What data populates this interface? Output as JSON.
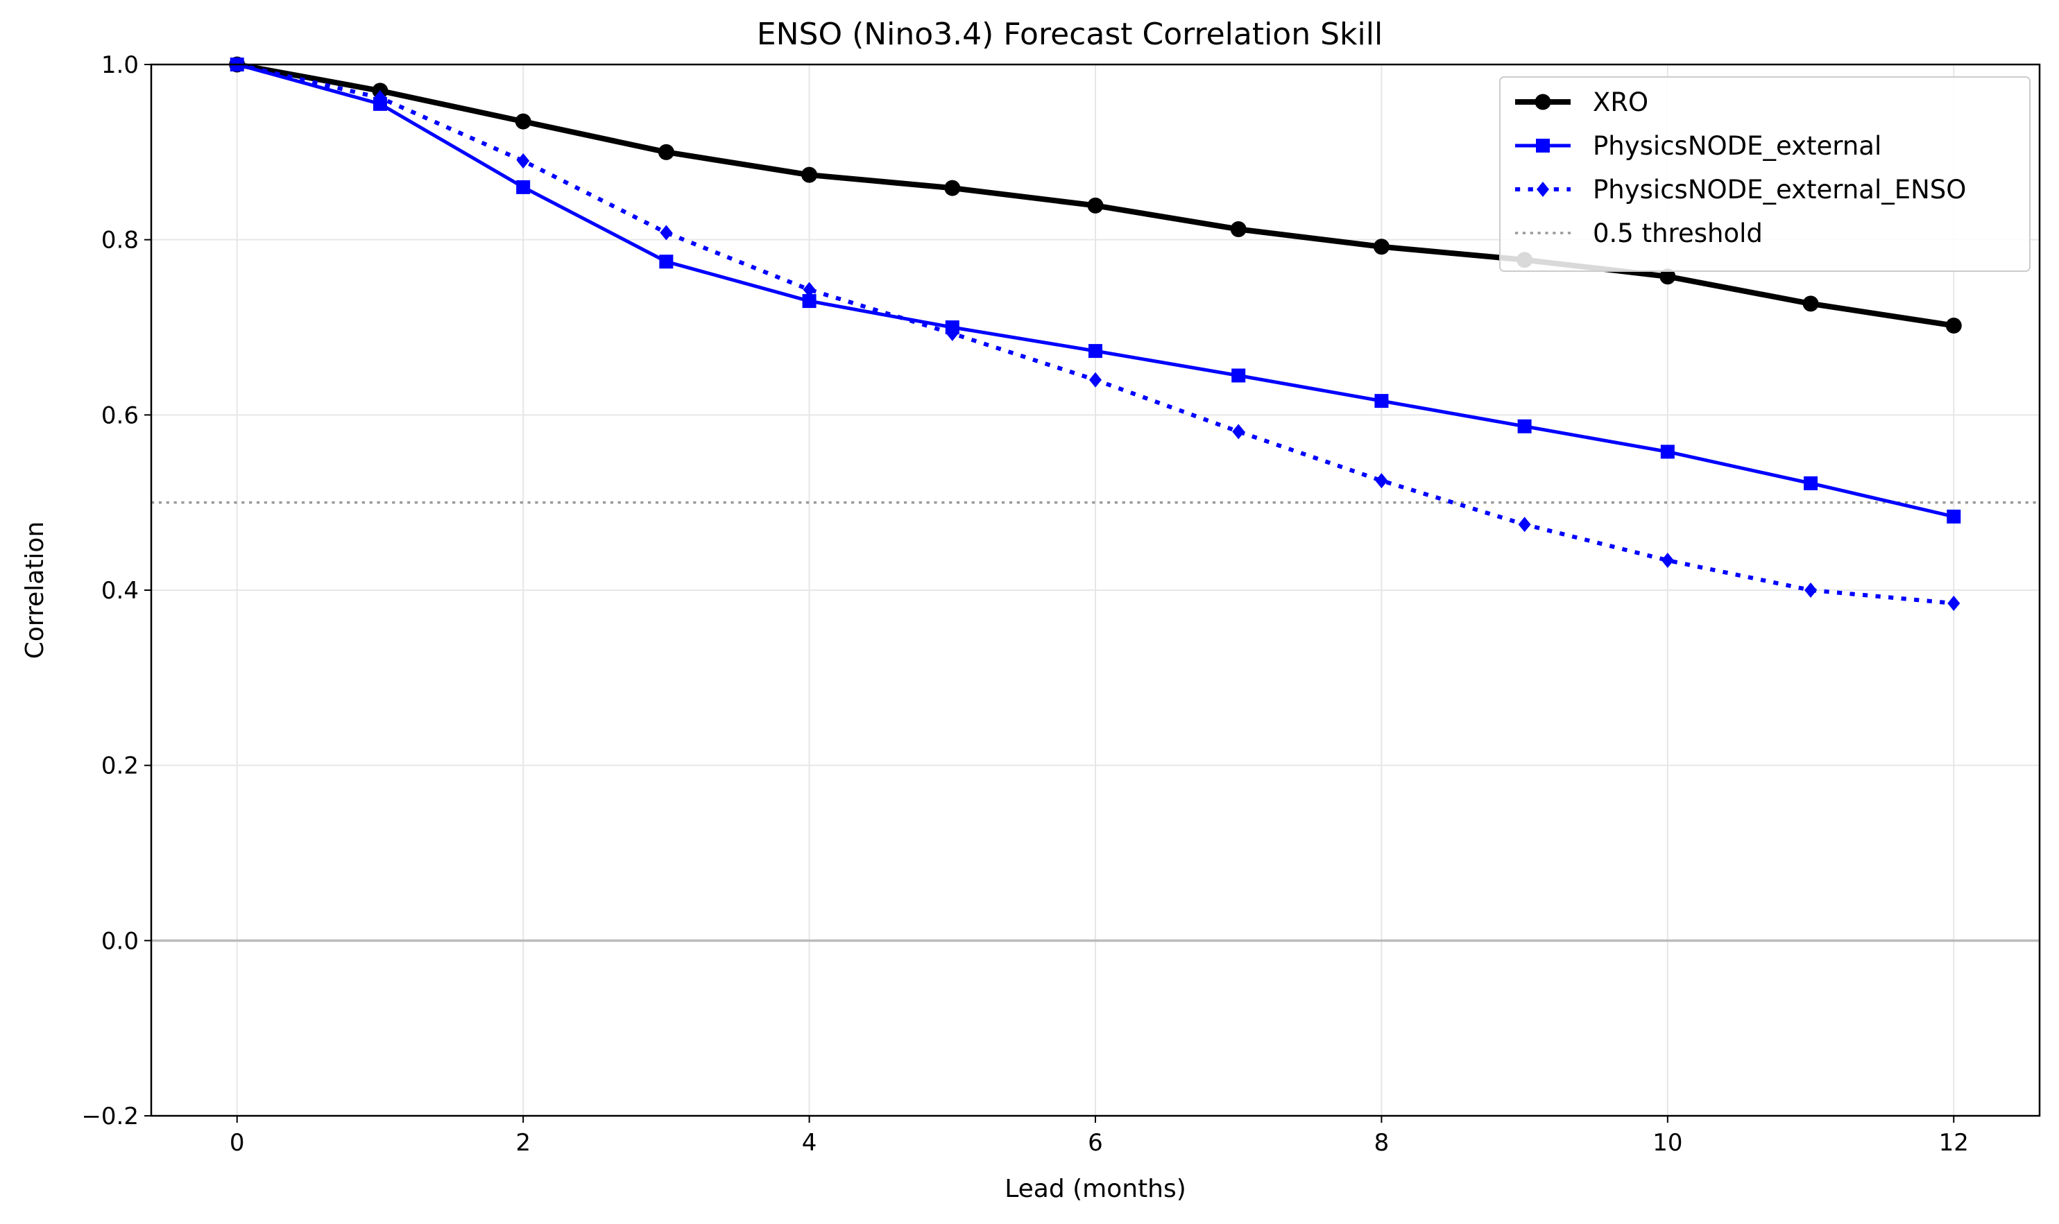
{
  "chart_data": {
    "type": "line",
    "title": "ENSO (Nino3.4) Forecast Correlation Skill",
    "xlabel": "Lead (months)",
    "ylabel": "Correlation",
    "xlim": [
      -0.6,
      12.6
    ],
    "ylim": [
      -0.2,
      1.0
    ],
    "xticks": [
      0,
      2,
      4,
      6,
      8,
      10,
      12
    ],
    "xtick_labels": [
      "0",
      "2",
      "4",
      "6",
      "8",
      "10",
      "12"
    ],
    "yticks": [
      -0.2,
      0.0,
      0.2,
      0.4,
      0.6,
      0.8,
      1.0
    ],
    "ytick_labels": [
      "−0.2",
      "0.0",
      "0.2",
      "0.4",
      "0.6",
      "0.8",
      "1.0"
    ],
    "grid": true,
    "legend_position": "top-right",
    "x": [
      0,
      1,
      2,
      3,
      4,
      5,
      6,
      7,
      8,
      9,
      10,
      11,
      12
    ],
    "series": [
      {
        "name": "XRO",
        "color": "#000000",
        "line_style": "solid",
        "marker": "circle",
        "values": [
          1.0,
          0.97,
          0.935,
          0.9,
          0.874,
          0.859,
          0.839,
          0.812,
          0.792,
          0.777,
          0.758,
          0.727,
          0.702
        ]
      },
      {
        "name": "PhysicsNODE_external",
        "color": "#0000ff",
        "line_style": "solid",
        "marker": "square",
        "values": [
          1.0,
          0.955,
          0.86,
          0.775,
          0.73,
          0.7,
          0.673,
          0.645,
          0.616,
          0.587,
          0.558,
          0.522,
          0.484
        ]
      },
      {
        "name": "PhysicsNODE_external_ENSO",
        "color": "#0000ff",
        "line_style": "dotted",
        "marker": "diamond",
        "values": [
          1.0,
          0.962,
          0.89,
          0.808,
          0.743,
          0.693,
          0.64,
          0.581,
          0.525,
          0.475,
          0.434,
          0.4,
          0.385
        ]
      }
    ],
    "reference_lines": [
      {
        "name": "0.5 threshold",
        "y": 0.5,
        "color": "#999999",
        "line_style": "dotted",
        "in_legend": true
      },
      {
        "name": "",
        "y": 0.0,
        "color": "#bbbbbb",
        "line_style": "solid",
        "in_legend": false
      }
    ]
  }
}
